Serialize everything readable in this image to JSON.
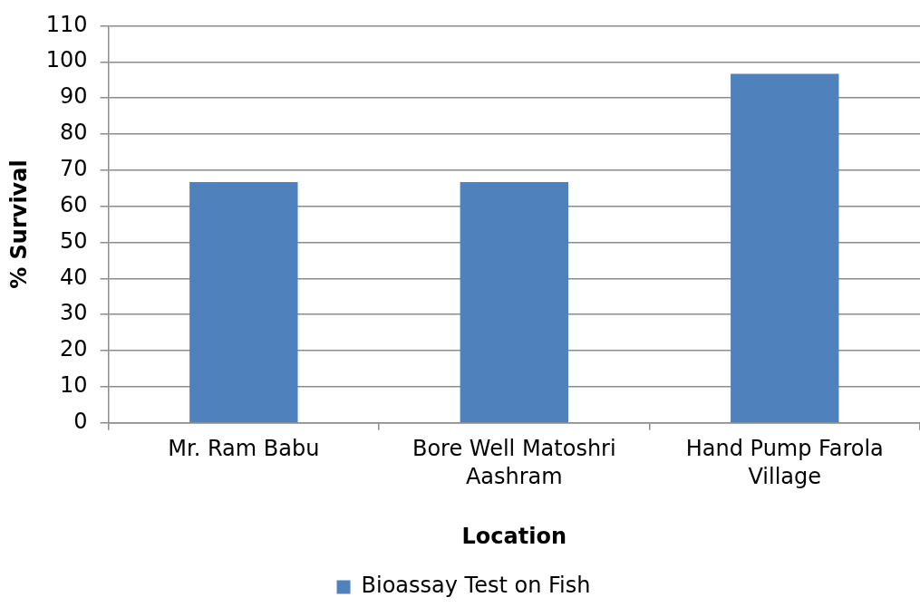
{
  "chart_data": {
    "type": "bar",
    "xlabel": "Location",
    "ylabel": "% Survival",
    "categories": [
      "Mr. Ram Babu",
      "Bore Well Matoshri Aashram",
      "Hand Pump Farola Village"
    ],
    "series": [
      {
        "name": "Bioassay Test on Fish",
        "color": "#4f81bd",
        "values": [
          66.7,
          66.7,
          96.7
        ]
      }
    ],
    "ylim": [
      0,
      110
    ],
    "yticks": [
      0,
      10,
      20,
      30,
      40,
      50,
      60,
      70,
      80,
      90,
      100,
      110
    ],
    "grid": "y",
    "legend": "bottom"
  }
}
